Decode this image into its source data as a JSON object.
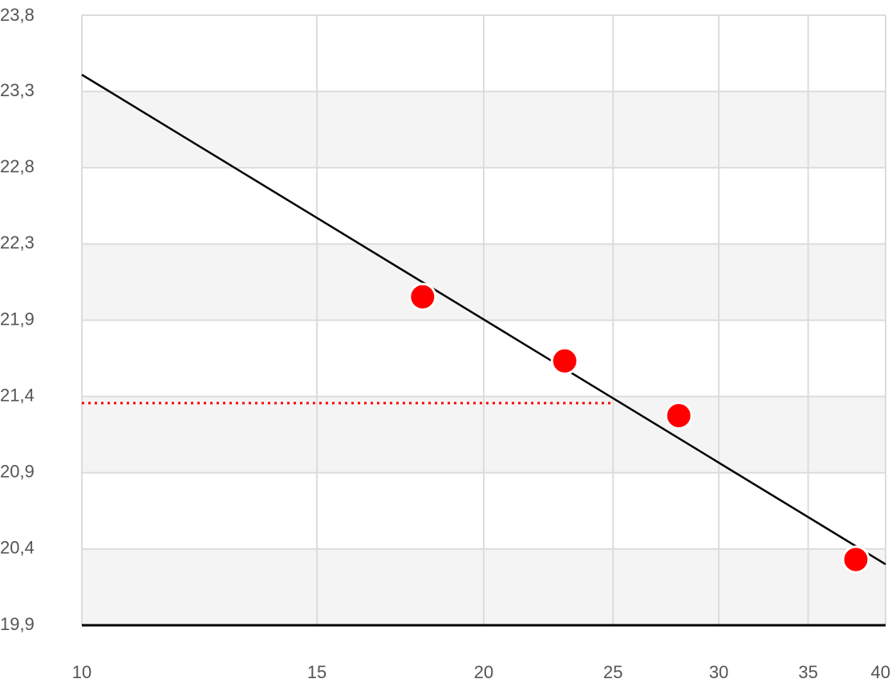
{
  "chart_data": {
    "type": "scatter",
    "x": [
      18,
      23,
      28,
      38
    ],
    "values": [
      22.0,
      21.59,
      21.24,
      20.32
    ],
    "color": "#ff0000",
    "xlim": [
      10,
      40
    ],
    "xscale": "log",
    "xticks": [
      10,
      15,
      20,
      25,
      30,
      35,
      40
    ],
    "ylim": [
      19.9,
      23.8
    ],
    "yticks": [
      {
        "value": 19.9,
        "label": "19,9"
      },
      {
        "value": 20.3875,
        "label": "20,4"
      },
      {
        "value": 20.875,
        "label": "20,9"
      },
      {
        "value": 21.3625,
        "label": "21,4"
      },
      {
        "value": 21.85,
        "label": "21,9"
      },
      {
        "value": 22.3375,
        "label": "22,3"
      },
      {
        "value": 22.825,
        "label": "22,8"
      },
      {
        "value": 23.3125,
        "label": "23,3"
      },
      {
        "value": 23.8,
        "label": "23,8"
      }
    ],
    "grid": true,
    "bands": true,
    "trendline": {
      "x": [
        10,
        40
      ],
      "values": [
        23.42,
        20.29
      ],
      "color": "#000000"
    },
    "reference_line": {
      "x": [
        10,
        25
      ],
      "value": 21.32,
      "color": "#ff0000"
    }
  }
}
